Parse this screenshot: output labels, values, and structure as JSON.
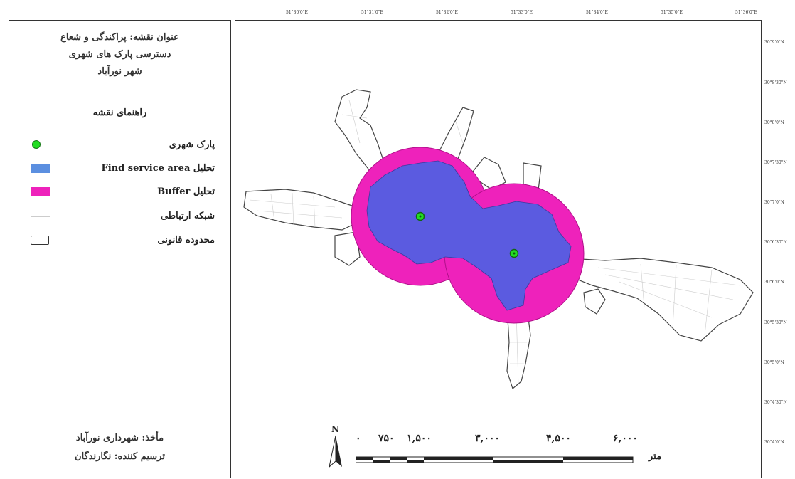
{
  "title": {
    "lines": [
      "عنوان نقشه: پراکندگی و شعاع",
      "دسترسی پارک های شهری",
      "شهر نورآباد"
    ]
  },
  "legend": {
    "heading": "راهنمای نقشه",
    "items": [
      {
        "label": "پارک شهری",
        "symbol": "green-point",
        "color": "#22dd22"
      },
      {
        "label": "تحلیل Find service area",
        "symbol": "fill",
        "color": "#5b8fe0"
      },
      {
        "label": "تحلیل Buffer",
        "symbol": "fill",
        "color": "#ee22bb"
      },
      {
        "label": "شبکه ارتباطی",
        "symbol": "line",
        "color": "#cccccc"
      },
      {
        "label": "محدوده قانونی",
        "symbol": "outline",
        "color": "#333333"
      }
    ]
  },
  "source": {
    "lines": [
      "مأخذ: شهرداری نورآباد",
      "ترسیم کننده: نگارندگان"
    ]
  },
  "grid": {
    "longitudes": [
      "51°30'0\"E",
      "51°31'0\"E",
      "51°32'0\"E",
      "51°33'0\"E",
      "51°34'0\"E",
      "51°35'0\"E",
      "51°36'0\"E"
    ],
    "latitudes": [
      "30°9'0\"N",
      "30°8'30\"N",
      "30°8'0\"N",
      "30°7'30\"N",
      "30°7'0\"N",
      "30°6'30\"N",
      "30°6'0\"N",
      "30°5'30\"N",
      "30°5'0\"N",
      "30°4'30\"N",
      "30°4'0\"N"
    ]
  },
  "scalebar": {
    "ticks": [
      "۰",
      "۷۵۰",
      "۱,۵۰۰",
      "۳,۰۰۰",
      "۴,۵۰۰",
      "۶,۰۰۰"
    ],
    "unit": "متر"
  },
  "north_label": "N",
  "colors": {
    "service_area": "#5b5be0",
    "buffer": "#ee22bb",
    "park": "#22dd22",
    "boundary": "#444444"
  }
}
